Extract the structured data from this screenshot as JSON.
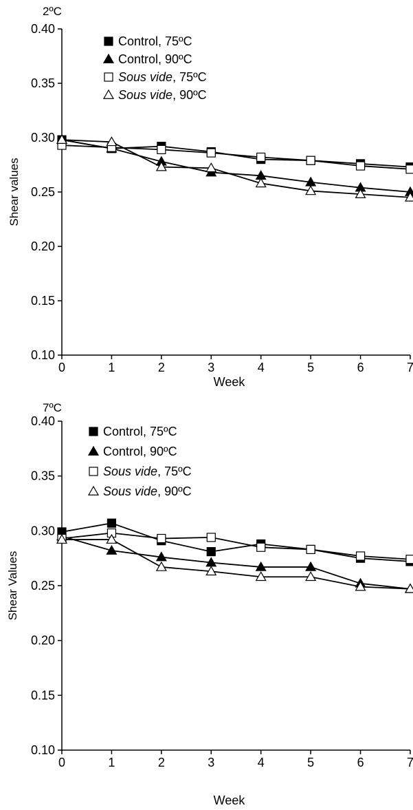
{
  "chart_data": [
    {
      "type": "line",
      "title": "2ºC",
      "xlabel": "Week",
      "ylabel": "Shear values",
      "xlim": [
        0,
        7
      ],
      "ylim": [
        0.1,
        0.4
      ],
      "x": [
        0,
        1,
        2,
        3,
        4,
        5,
        6,
        7
      ],
      "x_ticks": [
        "0",
        "1",
        "2",
        "3",
        "4",
        "5",
        "6",
        "7"
      ],
      "y_ticks": [
        "0.10",
        "0.15",
        "0.20",
        "0.25",
        "0.30",
        "0.35",
        "0.40"
      ],
      "grid": false,
      "legend_position": "top-left",
      "series": [
        {
          "name_main": "Control",
          "name_suffix": ", 75ºC",
          "italic": false,
          "marker": "filled-square",
          "values": [
            0.298,
            0.29,
            0.292,
            0.287,
            0.28,
            0.279,
            0.276,
            0.273
          ]
        },
        {
          "name_main": "Control",
          "name_suffix": ", 90ºC",
          "italic": false,
          "marker": "filled-triangle",
          "values": [
            0.298,
            0.29,
            0.278,
            0.268,
            0.265,
            0.259,
            0.254,
            0.25
          ]
        },
        {
          "name_main": "Sous vide",
          "name_suffix": ", 75ºC",
          "italic": true,
          "marker": "open-square",
          "values": [
            0.293,
            0.291,
            0.289,
            0.286,
            0.282,
            0.279,
            0.274,
            0.271
          ]
        },
        {
          "name_main": "Sous vide",
          "name_suffix": ", 90ºC",
          "italic": true,
          "marker": "open-triangle",
          "values": [
            0.298,
            0.296,
            0.273,
            0.272,
            0.258,
            0.251,
            0.248,
            0.245
          ]
        }
      ]
    },
    {
      "type": "line",
      "title": "7ºC",
      "xlabel": "Week",
      "ylabel": "Shear Values",
      "xlim": [
        0,
        7
      ],
      "ylim": [
        0.1,
        0.4
      ],
      "x": [
        0,
        1,
        2,
        3,
        4,
        5,
        6,
        7
      ],
      "x_ticks": [
        "0",
        "1",
        "2",
        "3",
        "4",
        "5",
        "6",
        "7"
      ],
      "y_ticks": [
        "0.10",
        "0.15",
        "0.20",
        "0.25",
        "0.30",
        "0.35",
        "0.40"
      ],
      "grid": false,
      "legend_position": "top-left",
      "series": [
        {
          "name_main": "Control",
          "name_suffix": ", 75ºC",
          "italic": false,
          "marker": "filled-square",
          "values": [
            0.299,
            0.307,
            0.291,
            0.281,
            0.288,
            0.283,
            0.275,
            0.272
          ]
        },
        {
          "name_main": "Control",
          "name_suffix": ", 90ºC",
          "italic": false,
          "marker": "filled-triangle",
          "values": [
            0.295,
            0.282,
            0.276,
            0.271,
            0.267,
            0.267,
            0.252,
            0.247
          ]
        },
        {
          "name_main": "Sous vide",
          "name_suffix": ", 75ºC",
          "italic": true,
          "marker": "open-square",
          "values": [
            0.293,
            0.298,
            0.293,
            0.294,
            0.285,
            0.283,
            0.277,
            0.274
          ]
        },
        {
          "name_main": "Sous vide",
          "name_suffix": ", 90ºC",
          "italic": true,
          "marker": "open-triangle",
          "values": [
            0.292,
            0.292,
            0.267,
            0.263,
            0.258,
            0.258,
            0.249,
            0.247
          ]
        }
      ]
    }
  ]
}
